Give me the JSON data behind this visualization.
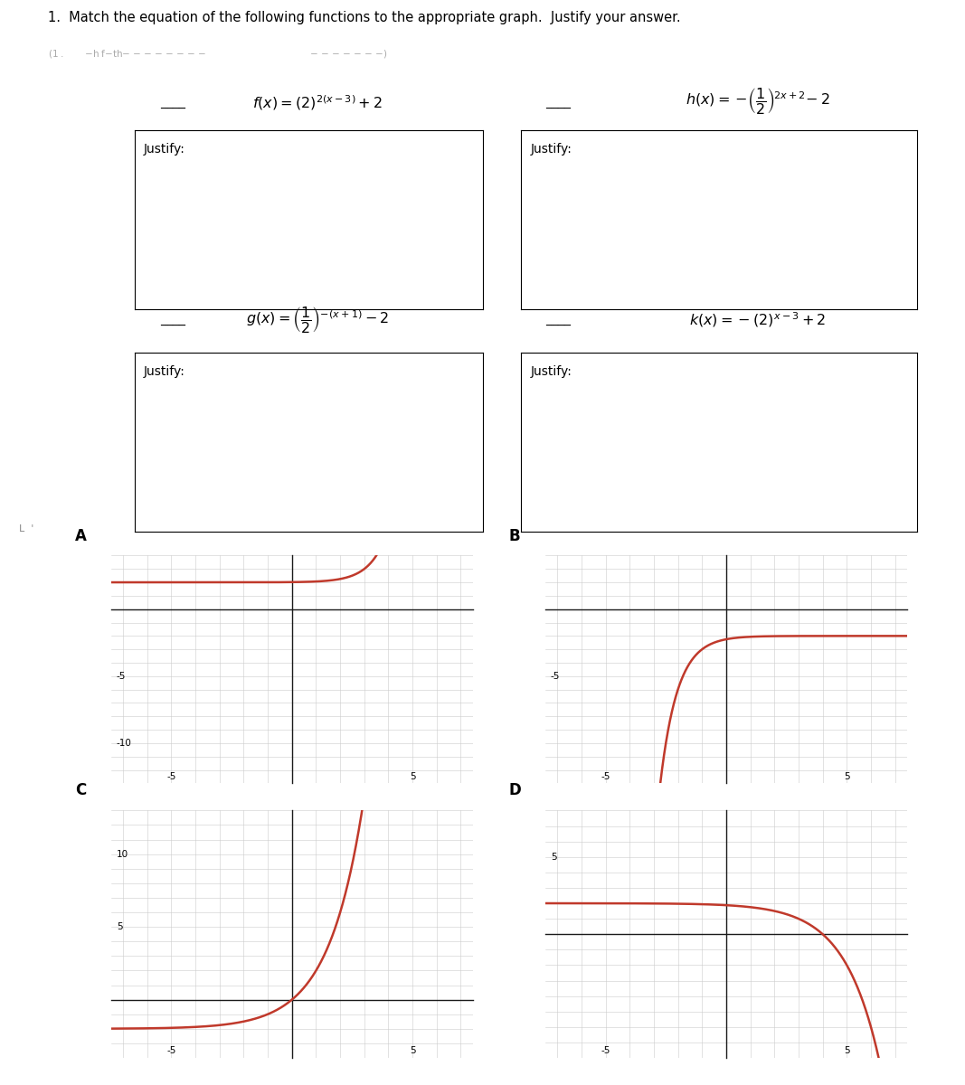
{
  "title": "1.  Match the equation of the following functions to the appropriate graph.  Justify your answer.",
  "curve_color": "#c0392b",
  "axis_color": "#1a1a1a",
  "grid_color": "#cccccc",
  "background": "#ffffff",
  "box_color": "#000000",
  "text_color": "#000000",
  "graphs": [
    {
      "label": "A",
      "xlim": [
        -7.5,
        7.5
      ],
      "ylim": [
        -13,
        4
      ],
      "xtick_vals": [
        -5,
        0,
        5
      ],
      "ytick_vals": [
        -10,
        -5
      ],
      "func": "f"
    },
    {
      "label": "B",
      "xlim": [
        -7.5,
        7.5
      ],
      "ylim": [
        -13,
        4
      ],
      "xtick_vals": [
        -5,
        0,
        5
      ],
      "ytick_vals": [
        -5
      ],
      "func": "h"
    },
    {
      "label": "C",
      "xlim": [
        -7.5,
        7.5
      ],
      "ylim": [
        -4,
        13
      ],
      "xtick_vals": [
        -5,
        0,
        5
      ],
      "ytick_vals": [
        5,
        10
      ],
      "func": "g"
    },
    {
      "label": "D",
      "xlim": [
        -7.5,
        7.5
      ],
      "ylim": [
        -8,
        8
      ],
      "xtick_vals": [
        -5,
        0,
        5
      ],
      "ytick_vals": [
        5
      ],
      "func": "k"
    }
  ]
}
